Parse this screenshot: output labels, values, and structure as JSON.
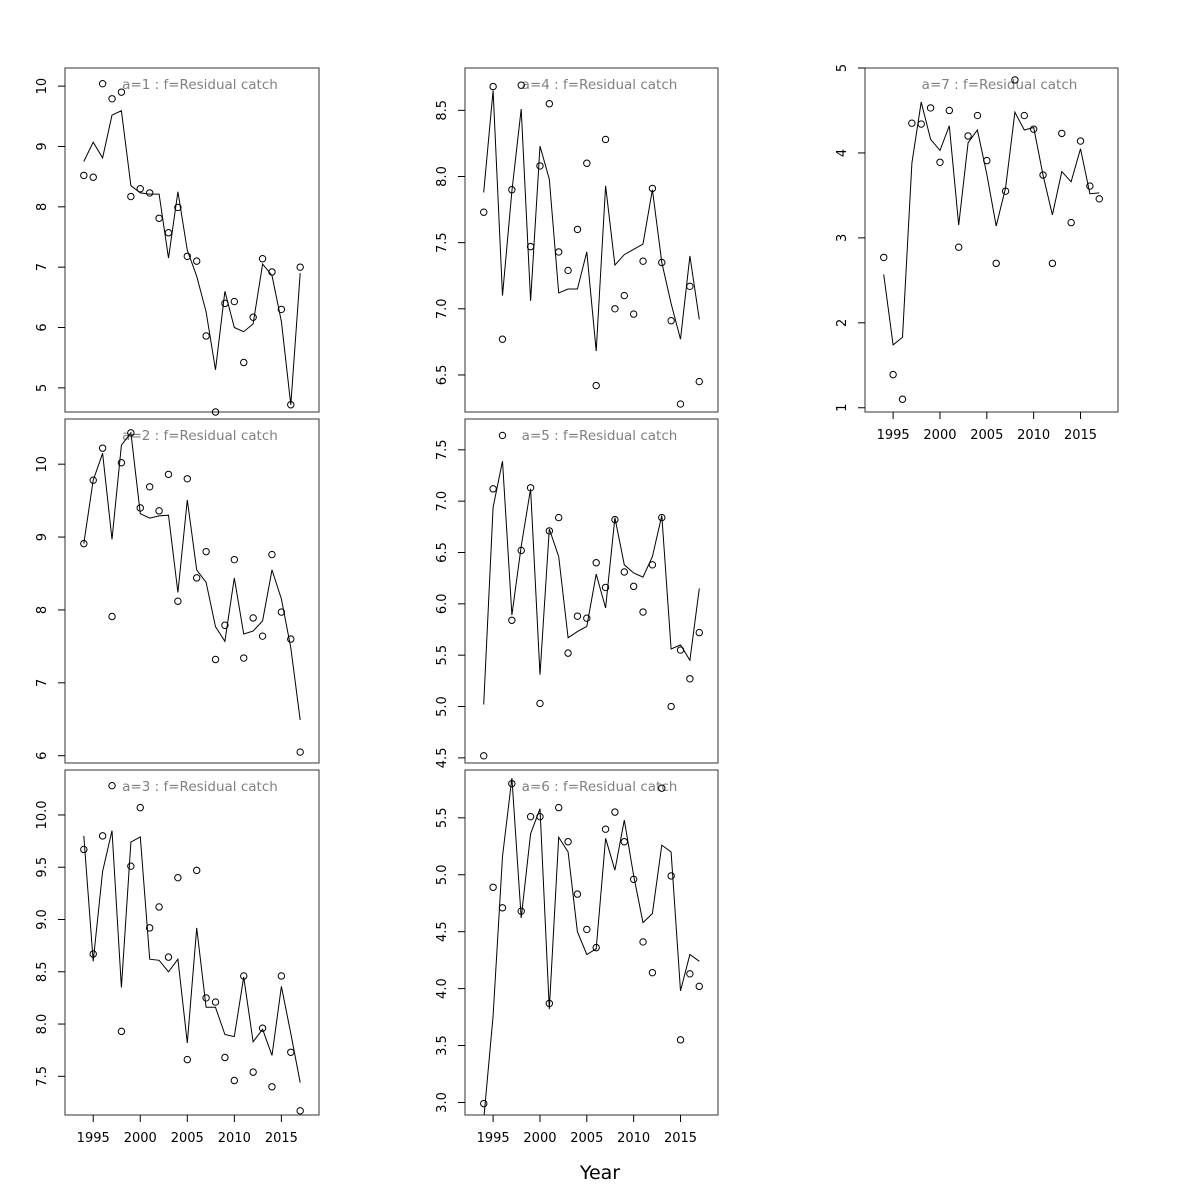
{
  "chart_data": {
    "type": "scatter",
    "xlabel": "Year",
    "years": [
      1994,
      1995,
      1996,
      1997,
      1998,
      1999,
      2000,
      2001,
      2002,
      2003,
      2004,
      2005,
      2006,
      2007,
      2008,
      2009,
      2010,
      2011,
      2012,
      2013,
      2014,
      2015,
      2016,
      2017
    ],
    "x_ticks": [
      1995,
      2000,
      2005,
      2010,
      2015
    ],
    "xlim": [
      1992.0,
      2019.0
    ],
    "grid": false,
    "panels": [
      {
        "title": "a=1  :  f=Residual catch",
        "ylim": [
          4.6,
          10.3
        ],
        "y_ticks": [
          5,
          6,
          7,
          8,
          9,
          10
        ],
        "y_tick_labels": [
          "5",
          "6",
          "7",
          "8",
          "9",
          "10"
        ],
        "observed": [
          8.52,
          8.49,
          10.04,
          9.79,
          9.9,
          8.17,
          8.3,
          8.23,
          7.81,
          7.57,
          7.99,
          7.18,
          7.1,
          5.86,
          4.6,
          6.4,
          6.43,
          5.42,
          6.17,
          7.14,
          6.92,
          6.3,
          4.72,
          7.0
        ],
        "fitted": [
          8.75,
          9.07,
          8.81,
          9.52,
          9.59,
          8.35,
          8.23,
          8.21,
          8.21,
          7.15,
          8.25,
          7.28,
          6.85,
          6.26,
          5.3,
          6.6,
          6.0,
          5.93,
          6.06,
          7.05,
          6.86,
          6.1,
          4.72,
          6.9
        ]
      },
      {
        "title": "a=2  :  f=Residual catch",
        "ylim": [
          5.9,
          10.62
        ],
        "y_ticks": [
          6,
          7,
          8,
          9,
          10
        ],
        "y_tick_labels": [
          "6",
          "7",
          "8",
          "9",
          "10"
        ],
        "observed": [
          8.91,
          9.78,
          10.22,
          7.91,
          10.02,
          10.43,
          9.4,
          9.69,
          9.36,
          9.86,
          8.12,
          9.8,
          8.44,
          8.8,
          7.32,
          7.79,
          8.69,
          7.34,
          7.89,
          7.64,
          8.76,
          7.97,
          7.6,
          6.05
        ],
        "fitted": [
          8.91,
          9.78,
          10.15,
          8.97,
          10.26,
          10.43,
          9.32,
          9.26,
          9.29,
          9.3,
          8.24,
          9.51,
          8.55,
          8.38,
          7.77,
          7.57,
          8.44,
          7.67,
          7.71,
          7.85,
          8.55,
          8.15,
          7.48,
          6.49
        ]
      },
      {
        "title": "a=3  :  f=Residual catch",
        "ylim": [
          7.13,
          10.43
        ],
        "y_ticks": [
          7.5,
          8.0,
          8.5,
          9.0,
          9.5,
          10.0
        ],
        "y_tick_labels": [
          "7.5",
          "8.0",
          "8.5",
          "9.0",
          "9.5",
          "10.0"
        ],
        "observed": [
          9.67,
          8.67,
          9.8,
          10.28,
          7.93,
          9.51,
          10.07,
          8.92,
          9.12,
          8.64,
          9.4,
          7.66,
          9.47,
          8.25,
          8.21,
          7.68,
          7.46,
          8.46,
          7.54,
          7.96,
          7.4,
          8.46,
          7.73,
          7.17
        ],
        "fitted": [
          9.8,
          8.6,
          9.46,
          9.85,
          8.35,
          9.74,
          9.79,
          8.62,
          8.61,
          8.5,
          8.62,
          7.82,
          8.92,
          8.16,
          8.16,
          7.9,
          7.88,
          8.45,
          7.83,
          7.95,
          7.7,
          8.36,
          7.91,
          7.44
        ]
      },
      {
        "title": "a=4  :  f=Residual catch",
        "ylim": [
          6.22,
          8.82
        ],
        "y_ticks": [
          6.5,
          7.0,
          7.5,
          8.0,
          8.5
        ],
        "y_tick_labels": [
          "6.5",
          "7.0",
          "7.5",
          "8.0",
          "8.5"
        ],
        "observed": [
          7.73,
          8.68,
          6.77,
          7.9,
          8.69,
          7.47,
          8.08,
          8.55,
          7.43,
          7.29,
          7.6,
          8.1,
          6.42,
          8.28,
          7.0,
          7.1,
          6.96,
          7.36,
          7.91,
          7.35,
          6.91,
          6.28,
          7.17,
          6.45
        ],
        "fitted": [
          7.88,
          8.65,
          7.1,
          7.89,
          8.51,
          7.06,
          8.23,
          7.98,
          7.12,
          7.15,
          7.15,
          7.43,
          6.68,
          7.93,
          7.33,
          7.41,
          7.45,
          7.49,
          7.9,
          7.35,
          7.04,
          6.77,
          7.4,
          6.92
        ]
      },
      {
        "title": "a=5  :  f=Residual catch",
        "ylim": [
          4.45,
          7.8
        ],
        "y_ticks": [
          4.5,
          5.0,
          5.5,
          6.0,
          6.5,
          7.0,
          7.5
        ],
        "y_tick_labels": [
          "4.5",
          "5.0",
          "5.5",
          "6.0",
          "6.5",
          "7.0",
          "7.5"
        ],
        "observed": [
          4.52,
          7.12,
          7.64,
          5.84,
          6.52,
          7.13,
          5.03,
          6.71,
          6.84,
          5.52,
          5.88,
          5.86,
          6.4,
          6.16,
          6.82,
          6.31,
          6.17,
          5.92,
          6.38,
          6.84,
          5.0,
          5.55,
          5.27,
          5.72
        ],
        "fitted": [
          5.02,
          6.94,
          7.39,
          5.89,
          6.56,
          7.12,
          5.31,
          6.73,
          6.46,
          5.67,
          5.73,
          5.78,
          6.29,
          5.96,
          6.84,
          6.38,
          6.3,
          6.26,
          6.46,
          6.86,
          5.56,
          5.6,
          5.45,
          6.15
        ]
      },
      {
        "title": "a=6  :  f=Residual catch",
        "ylim": [
          2.89,
          5.92
        ],
        "y_ticks": [
          3.0,
          3.5,
          4.0,
          4.5,
          5.0,
          5.5
        ],
        "y_tick_labels": [
          "3.0",
          "3.5",
          "4.0",
          "4.5",
          "5.0",
          "5.5"
        ],
        "observed": [
          2.99,
          4.89,
          4.71,
          5.8,
          4.68,
          5.51,
          5.51,
          3.87,
          5.59,
          5.29,
          4.83,
          4.52,
          4.36,
          5.4,
          5.55,
          5.29,
          4.96,
          4.41,
          4.14,
          5.76,
          4.99,
          3.55,
          4.13,
          4.02
        ],
        "fitted": [
          2.85,
          3.76,
          5.16,
          5.85,
          4.62,
          5.36,
          5.58,
          3.82,
          5.33,
          5.2,
          4.5,
          4.3,
          4.35,
          5.32,
          5.04,
          5.48,
          4.99,
          4.58,
          4.66,
          5.26,
          5.2,
          3.98,
          4.3,
          4.24
        ]
      },
      {
        "title": "a=7  :  f=Residual catch",
        "ylim": [
          0.95,
          5.0
        ],
        "y_ticks": [
          1,
          2,
          3,
          4,
          5
        ],
        "y_tick_labels": [
          "1",
          "2",
          "3",
          "4",
          "5"
        ],
        "observed": [
          2.77,
          1.39,
          1.1,
          4.35,
          4.34,
          4.53,
          3.89,
          4.5,
          2.89,
          4.2,
          4.44,
          3.91,
          2.7,
          3.55,
          4.86,
          4.44,
          4.28,
          3.74,
          2.7,
          4.23,
          3.18,
          4.14,
          3.61,
          3.46
        ],
        "fitted": [
          2.57,
          1.74,
          1.83,
          3.88,
          4.6,
          4.16,
          4.03,
          4.32,
          3.15,
          4.12,
          4.27,
          3.75,
          3.14,
          3.59,
          4.48,
          4.27,
          4.3,
          3.74,
          3.27,
          3.78,
          3.66,
          4.05,
          3.52,
          3.53
        ]
      }
    ]
  }
}
